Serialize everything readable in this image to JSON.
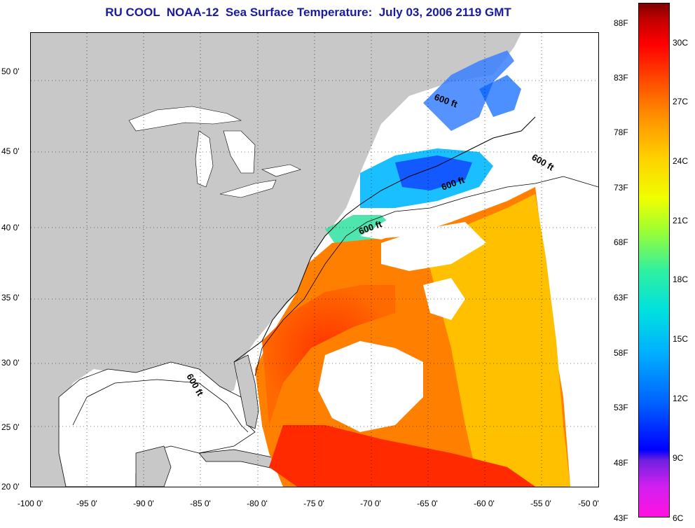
{
  "title": "RU COOL  NOAA-12  Sea Surface Temperature:  July 03, 2006 2119 GMT",
  "lat_labels": [
    "50 0'",
    "45 0'",
    "40 0'",
    "35 0'",
    "30 0'",
    "25 0'",
    "20 0'"
  ],
  "lon_labels": [
    "-100 0'",
    "-95 0'",
    "-90 0'",
    "-85 0'",
    "-80 0'",
    "-75 0'",
    "-70 0'",
    "-65 0'",
    "-60 0'",
    "-55 0'",
    "-50 0'"
  ],
  "contour_labels": [
    "600 ft",
    "600 ft",
    "600 ft",
    "600 ft",
    "600 ft"
  ],
  "colorbar": {
    "fahrenheit": [
      "88F",
      "83F",
      "78F",
      "73F",
      "68F",
      "63F",
      "58F",
      "53F",
      "48F",
      "43F"
    ],
    "celsius": [
      "30C",
      "27C",
      "24C",
      "21C",
      "18C",
      "15C",
      "12C",
      "9C",
      "6C"
    ]
  },
  "colors": {
    "land": "#c8c8c8",
    "no_data": "#ffffff",
    "title": "#1a1aa0"
  }
}
